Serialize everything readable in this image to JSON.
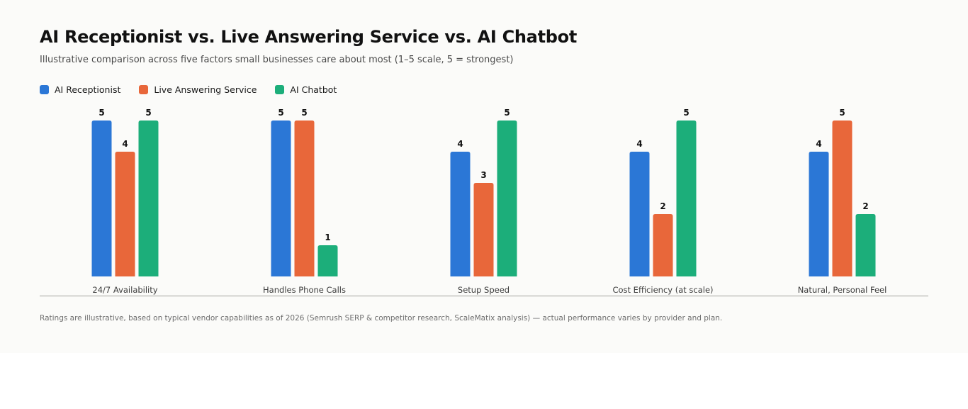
{
  "title": "AI Receptionist vs. Live Answering Service vs. AI Chatbot",
  "subtitle": "Illustrative comparison across five factors small businesses care about most (1–5 scale, 5 = strongest)",
  "footnote": "Ratings are illustrative, based on typical vendor capabilities as of 2026 (Semrush SERP & competitor research, ScaleMatix analysis) — actual performance varies by provider and plan.",
  "legend": [
    {
      "label": "AI Receptionist",
      "color": "#2b77d6"
    },
    {
      "label": "Live Answering Service",
      "color": "#e8673a"
    },
    {
      "label": "AI Chatbot",
      "color": "#1cae7a"
    }
  ],
  "chart_data": {
    "type": "bar",
    "title": "AI Receptionist vs. Live Answering Service vs. AI Chatbot",
    "categories": [
      "24/7 Availability",
      "Handles Phone Calls",
      "Setup Speed",
      "Cost Efficiency (at scale)",
      "Natural, Personal Feel"
    ],
    "series": [
      {
        "name": "AI Receptionist",
        "color": "#2b77d6",
        "values": [
          5,
          5,
          4,
          4,
          4
        ]
      },
      {
        "name": "Live Answering Service",
        "color": "#e8673a",
        "values": [
          4,
          5,
          3,
          2,
          5
        ]
      },
      {
        "name": "AI Chatbot",
        "color": "#1cae7a",
        "values": [
          5,
          1,
          5,
          5,
          2
        ]
      }
    ],
    "ylim": [
      0,
      5
    ],
    "grid": false,
    "legend_position": "top-left",
    "data_labels": true
  }
}
